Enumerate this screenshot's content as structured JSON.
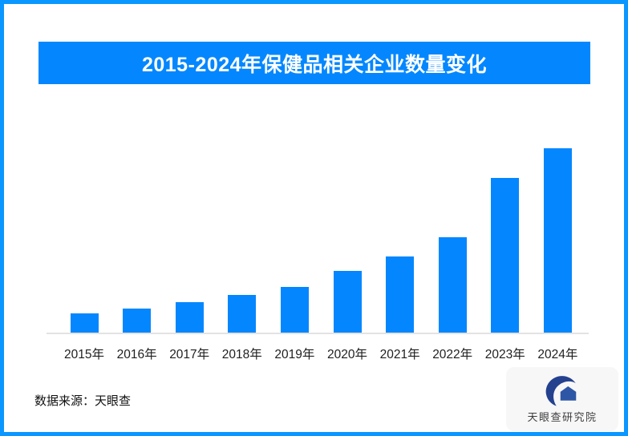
{
  "page": {
    "title": "2015-2024年保健品相关企业数量变化",
    "source_note": "数据来源：天眼查",
    "logo_text": "天眼查研究院",
    "logo_icon_name": "tianyancha-eye-swoosh-house-logo"
  },
  "colors": {
    "accent_blue": "#0487fe",
    "border_blue": "#0a97ff",
    "axis_line_gray": "#e3e3e3",
    "logo_navy": "#24418f",
    "logo_navy_light": "#2d56a6",
    "logo_card_bg": "#f7f7f7",
    "title_text": "#ffffff"
  },
  "chart_data": {
    "type": "bar",
    "title": "2015-2024年保健品相关企业数量变化",
    "categories": [
      "2015年",
      "2016年",
      "2017年",
      "2018年",
      "2019年",
      "2020年",
      "2021年",
      "2022年",
      "2023年",
      "2024年"
    ],
    "values": [
      10.6,
      13.2,
      16.3,
      20.6,
      24.7,
      33.6,
      41.0,
      51.8,
      83.9,
      100
    ],
    "values_note": "相对值估算（图中未显示数值轴刻度），以2024年=100",
    "xlabel": "",
    "ylabel": "",
    "ylim": [
      0,
      105
    ],
    "grid": false,
    "legend": false,
    "bar_color": "#0487fe",
    "source": "天眼查"
  }
}
